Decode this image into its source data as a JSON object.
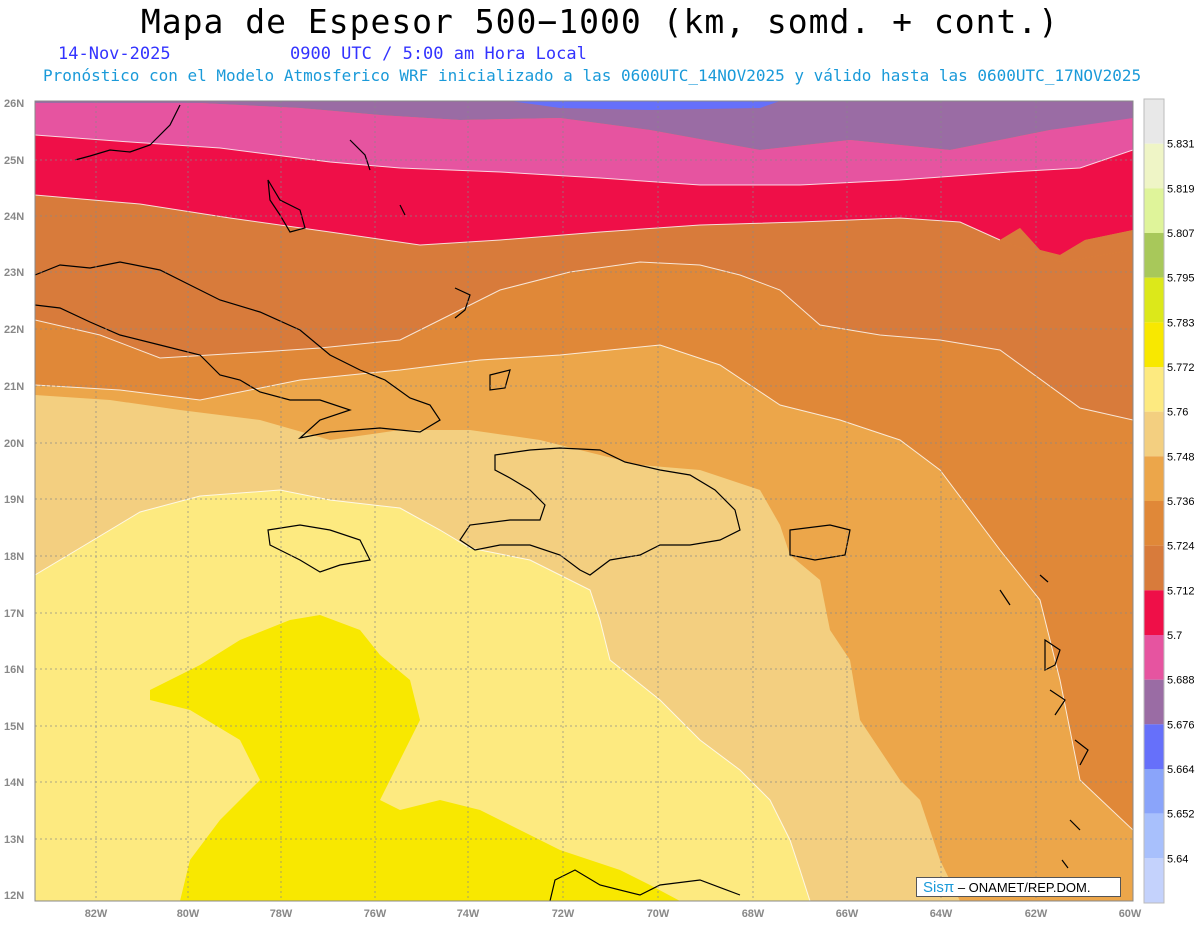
{
  "header": {
    "title": "Mapa de Espesor 500−1000 (km, somd. + cont.)",
    "date": "14-Nov-2025",
    "time": "0900 UTC / 5:00 am Hora Local",
    "model_line": "Pronóstico con el Modelo Atmosferico WRF inicializado a las 0600UTC_14NOV2025 y válido hasta las  0600UTC_17NOV2025"
  },
  "map": {
    "lat_labels": [
      "26N",
      "25N",
      "24N",
      "23N",
      "22N",
      "21N",
      "20N",
      "19N",
      "18N",
      "17N",
      "16N",
      "15N",
      "14N",
      "13N",
      "12N"
    ],
    "lon_labels": [
      "82W",
      "80W",
      "78W",
      "76W",
      "74W",
      "72W",
      "70W",
      "68W",
      "66W",
      "64W",
      "62W",
      "60W"
    ],
    "credit_sis": "Sisπ",
    "credit_text": "– ONAMET/REP.DOM."
  },
  "legend": {
    "labels": [
      "5.831",
      "5.819",
      "5.807",
      "5.795",
      "5.783",
      "5.772",
      "5.76",
      "5.748",
      "5.736",
      "5.724",
      "5.712",
      "5.7",
      "5.688",
      "5.676",
      "5.664",
      "5.652",
      "5.64"
    ],
    "colors": [
      "#e8e8e8",
      "#eff5c6",
      "#dff49a",
      "#a8c85a",
      "#dce81a",
      "#f8e800",
      "#fdea80",
      "#f3cf80",
      "#eca64a",
      "#e08838",
      "#d87b3b",
      "#ef0f48",
      "#e654a0",
      "#9a6ca4",
      "#6670fa",
      "#8aa4fa",
      "#a8c0fc",
      "#c4d2fc"
    ]
  }
}
